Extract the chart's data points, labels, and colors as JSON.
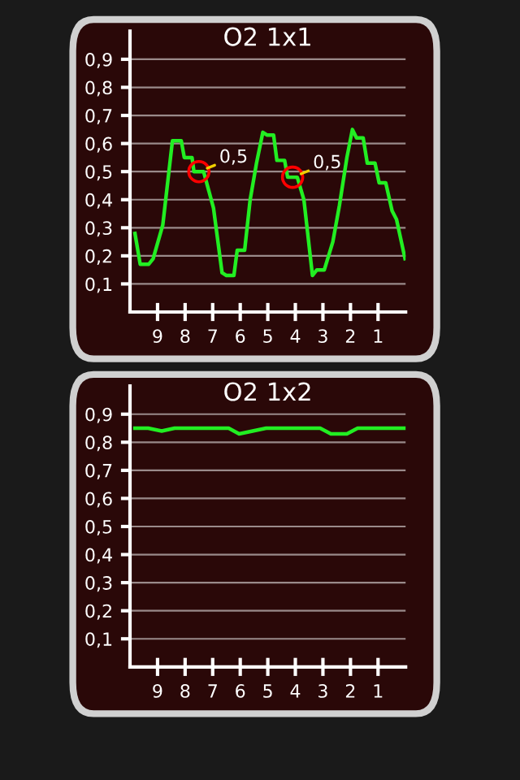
{
  "chart_data": [
    {
      "type": "line",
      "title": "O2 1x1",
      "x": [
        9.82,
        9.63,
        9.32,
        9.16,
        8.81,
        8.46,
        8.14,
        8.03,
        7.75,
        7.68,
        7.33,
        6.97,
        6.66,
        6.5,
        6.23,
        6.11,
        5.84,
        5.64,
        5.41,
        5.18,
        5.02,
        4.79,
        4.67,
        4.39,
        4.28,
        3.93,
        3.69,
        3.38,
        3.22,
        2.95,
        2.64,
        2.4,
        2.13,
        1.93,
        1.78,
        1.54,
        1.39,
        1.11,
        0.96,
        0.72,
        0.49,
        0.33,
        0.02
      ],
      "series": [
        {
          "color": "#22ee22",
          "values": [
            0.28,
            0.17,
            0.17,
            0.19,
            0.31,
            0.61,
            0.61,
            0.55,
            0.55,
            0.5,
            0.5,
            0.37,
            0.14,
            0.13,
            0.13,
            0.22,
            0.22,
            0.4,
            0.53,
            0.64,
            0.63,
            0.63,
            0.54,
            0.54,
            0.48,
            0.48,
            0.4,
            0.13,
            0.15,
            0.15,
            0.25,
            0.38,
            0.55,
            0.65,
            0.62,
            0.62,
            0.53,
            0.53,
            0.46,
            0.46,
            0.36,
            0.33,
            0.19
          ]
        }
      ],
      "xlim": [
        10,
        0
      ],
      "ylim": [
        0,
        1
      ],
      "xticks": [
        9,
        8,
        7,
        6,
        5,
        4,
        3,
        2,
        1
      ],
      "yticks": [
        {
          "value": 0.1,
          "label": "0,1"
        },
        {
          "value": 0.2,
          "label": "0,2"
        },
        {
          "value": 0.3,
          "label": "0,3"
        },
        {
          "value": 0.4,
          "label": "0,4"
        },
        {
          "value": 0.5,
          "label": "0,5"
        },
        {
          "value": 0.6,
          "label": "0,6"
        },
        {
          "value": 0.7,
          "label": "0,7"
        },
        {
          "value": 0.8,
          "label": "0,8"
        },
        {
          "value": 0.9,
          "label": "0,9"
        }
      ],
      "grid": "y",
      "annotations": [
        {
          "text": "0,5",
          "x": 7.5,
          "y": 0.5
        },
        {
          "text": "0,5",
          "x": 4.1,
          "y": 0.48
        }
      ]
    },
    {
      "type": "line",
      "title": "O2 1x2",
      "x": [
        9.82,
        9.34,
        8.85,
        8.38,
        7.89,
        7.0,
        6.42,
        6.04,
        5.55,
        5.06,
        4.47,
        3.69,
        3.1,
        2.71,
        2.13,
        1.74,
        1.15,
        0.57,
        0.02
      ],
      "series": [
        {
          "color": "#22ee22",
          "values": [
            0.85,
            0.85,
            0.84,
            0.85,
            0.85,
            0.85,
            0.85,
            0.83,
            0.84,
            0.85,
            0.85,
            0.85,
            0.85,
            0.83,
            0.83,
            0.85,
            0.85,
            0.85,
            0.85
          ]
        }
      ],
      "xlim": [
        10,
        0
      ],
      "ylim": [
        0,
        1
      ],
      "xticks": [
        9,
        8,
        7,
        6,
        5,
        4,
        3,
        2,
        1
      ],
      "yticks": [
        {
          "value": 0.1,
          "label": "0,1"
        },
        {
          "value": 0.2,
          "label": "0,2"
        },
        {
          "value": 0.3,
          "label": "0,3"
        },
        {
          "value": 0.4,
          "label": "0,4"
        },
        {
          "value": 0.5,
          "label": "0,5"
        },
        {
          "value": 0.6,
          "label": "0,6"
        },
        {
          "value": 0.7,
          "label": "0,7"
        },
        {
          "value": 0.8,
          "label": "0,8"
        },
        {
          "value": 0.9,
          "label": "0,9"
        }
      ],
      "grid": "y"
    }
  ]
}
